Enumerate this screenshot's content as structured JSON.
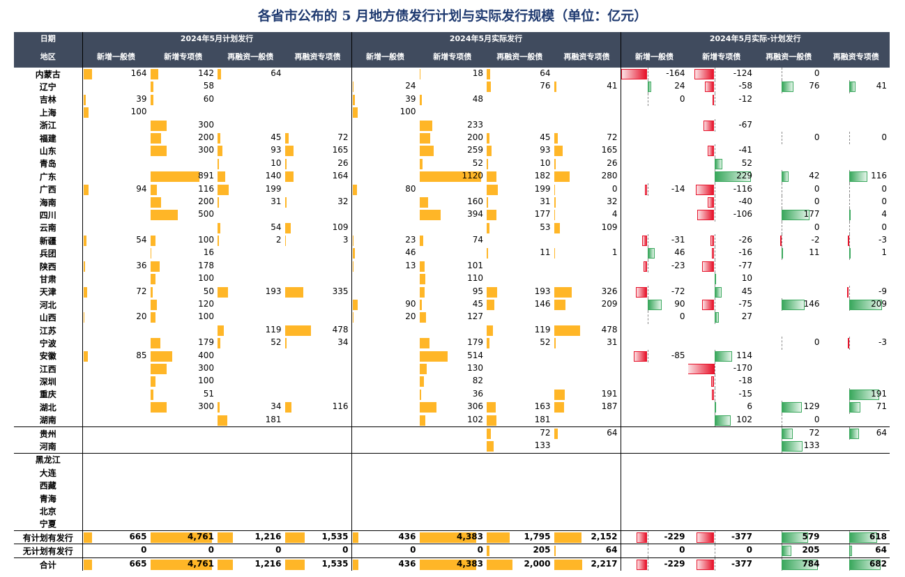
{
  "title": "各省市公布的 5 月地方债发行计划与实际发行规模（单位：亿元）",
  "header": {
    "row1_label": "日期",
    "row2_label": "地区",
    "groups": [
      "2024年5月计划发行",
      "2024年5月实际发行",
      "2024年5月实际-计划发行"
    ],
    "cols": [
      "新增一般债",
      "新增专项债",
      "再融资一般债",
      "再融资专项债"
    ]
  },
  "colors": {
    "header_bg": "#404b5e",
    "bar": "#ffb627",
    "pos_bar": "#39a75c",
    "neg_bar": "#e6122a",
    "title": "#1f3a70"
  },
  "rows": [
    {
      "name": "内蒙古",
      "p": [
        164,
        142,
        64,
        null
      ],
      "a": [
        null,
        18,
        64,
        null
      ],
      "d": [
        -164,
        -124,
        0,
        null
      ]
    },
    {
      "name": "辽宁",
      "p": [
        null,
        58,
        null,
        null
      ],
      "a": [
        24,
        null,
        76,
        41
      ],
      "d": [
        24,
        -58,
        76,
        41
      ]
    },
    {
      "name": "吉林",
      "p": [
        39,
        60,
        null,
        null
      ],
      "a": [
        39,
        48,
        null,
        null
      ],
      "d": [
        0,
        -12,
        null,
        null
      ]
    },
    {
      "name": "上海",
      "p": [
        100,
        null,
        null,
        null
      ],
      "a": [
        100,
        null,
        null,
        null
      ],
      "d": [
        null,
        null,
        null,
        null
      ]
    },
    {
      "name": "浙江",
      "p": [
        null,
        300,
        null,
        null
      ],
      "a": [
        null,
        233,
        null,
        null
      ],
      "d": [
        null,
        -67,
        null,
        null
      ]
    },
    {
      "name": "福建",
      "p": [
        null,
        200,
        45,
        72
      ],
      "a": [
        null,
        200,
        45,
        72
      ],
      "d": [
        null,
        null,
        0,
        0
      ]
    },
    {
      "name": "山东",
      "p": [
        null,
        300,
        93,
        165
      ],
      "a": [
        null,
        259,
        93,
        165
      ],
      "d": [
        null,
        -41,
        null,
        null
      ]
    },
    {
      "name": "青岛",
      "p": [
        null,
        null,
        10,
        26
      ],
      "a": [
        null,
        52,
        10,
        26
      ],
      "d": [
        null,
        52,
        null,
        null
      ]
    },
    {
      "name": "广东",
      "p": [
        null,
        891,
        140,
        164
      ],
      "a": [
        null,
        1120,
        182,
        280
      ],
      "d": [
        null,
        229,
        42,
        116
      ]
    },
    {
      "name": "广西",
      "p": [
        94,
        116,
        199,
        null
      ],
      "a": [
        80,
        null,
        199,
        0
      ],
      "d": [
        -14,
        -116,
        0,
        0
      ]
    },
    {
      "name": "海南",
      "p": [
        null,
        200,
        31,
        32
      ],
      "a": [
        null,
        160,
        31,
        32
      ],
      "d": [
        null,
        -40,
        0,
        0
      ]
    },
    {
      "name": "四川",
      "p": [
        null,
        500,
        null,
        null
      ],
      "a": [
        null,
        394,
        177,
        4
      ],
      "d": [
        null,
        -106,
        177,
        4
      ]
    },
    {
      "name": "云南",
      "p": [
        null,
        null,
        54,
        109
      ],
      "a": [
        null,
        null,
        53,
        109
      ],
      "d": [
        null,
        null,
        0,
        0
      ]
    },
    {
      "name": "新疆",
      "p": [
        54,
        100,
        2,
        3
      ],
      "a": [
        23,
        74,
        null,
        null
      ],
      "d": [
        -31,
        -26,
        -2,
        -3
      ]
    },
    {
      "name": "兵团",
      "p": [
        null,
        16,
        null,
        null
      ],
      "a": [
        46,
        null,
        11,
        1
      ],
      "d": [
        46,
        -16,
        11,
        1
      ]
    },
    {
      "name": "陕西",
      "p": [
        36,
        178,
        null,
        null
      ],
      "a": [
        13,
        101,
        null,
        null
      ],
      "d": [
        -23,
        -77,
        null,
        null
      ]
    },
    {
      "name": "甘肃",
      "p": [
        null,
        100,
        null,
        null
      ],
      "a": [
        null,
        110,
        null,
        null
      ],
      "d": [
        null,
        10,
        null,
        null
      ]
    },
    {
      "name": "天津",
      "p": [
        72,
        50,
        193,
        335
      ],
      "a": [
        null,
        95,
        193,
        326
      ],
      "d": [
        -72,
        45,
        null,
        -9
      ]
    },
    {
      "name": "河北",
      "p": [
        null,
        120,
        null,
        null
      ],
      "a": [
        90,
        45,
        146,
        209
      ],
      "d": [
        90,
        -75,
        146,
        209
      ]
    },
    {
      "name": "山西",
      "p": [
        20,
        100,
        null,
        null
      ],
      "a": [
        20,
        127,
        null,
        null
      ],
      "d": [
        0,
        27,
        null,
        null
      ]
    },
    {
      "name": "江苏",
      "p": [
        null,
        null,
        119,
        478
      ],
      "a": [
        null,
        null,
        119,
        478
      ],
      "d": [
        null,
        null,
        null,
        null
      ]
    },
    {
      "name": "宁波",
      "p": [
        null,
        179,
        52,
        34
      ],
      "a": [
        null,
        179,
        52,
        31
      ],
      "d": [
        null,
        null,
        0,
        -3
      ]
    },
    {
      "name": "安徽",
      "p": [
        85,
        400,
        null,
        null
      ],
      "a": [
        null,
        514,
        null,
        null
      ],
      "d": [
        -85,
        114,
        null,
        null
      ]
    },
    {
      "name": "江西",
      "p": [
        null,
        300,
        null,
        null
      ],
      "a": [
        null,
        130,
        null,
        null
      ],
      "d": [
        null,
        -170,
        null,
        null
      ]
    },
    {
      "name": "深圳",
      "p": [
        null,
        100,
        null,
        null
      ],
      "a": [
        null,
        82,
        null,
        null
      ],
      "d": [
        null,
        -18,
        null,
        null
      ]
    },
    {
      "name": "重庆",
      "p": [
        null,
        51,
        null,
        null
      ],
      "a": [
        null,
        36,
        null,
        191
      ],
      "d": [
        null,
        -15,
        null,
        191
      ]
    },
    {
      "name": "湖北",
      "p": [
        null,
        300,
        34,
        116
      ],
      "a": [
        null,
        306,
        163,
        187
      ],
      "d": [
        null,
        6,
        129,
        71
      ]
    },
    {
      "name": "湖南",
      "p": [
        null,
        null,
        181,
        null
      ],
      "a": [
        null,
        102,
        181,
        null
      ],
      "d": [
        null,
        102,
        0,
        null
      ]
    },
    {
      "name": "贵州",
      "p": [
        null,
        null,
        null,
        null
      ],
      "a": [
        null,
        null,
        72,
        64
      ],
      "d": [
        null,
        null,
        72,
        64
      ]
    },
    {
      "name": "河南",
      "p": [
        null,
        null,
        null,
        null
      ],
      "a": [
        null,
        null,
        133,
        null
      ],
      "d": [
        null,
        null,
        133,
        null
      ]
    },
    {
      "name": "黑龙江",
      "p": [
        null,
        null,
        null,
        null
      ],
      "a": [
        null,
        null,
        null,
        null
      ],
      "d": [
        null,
        null,
        null,
        null
      ]
    },
    {
      "name": "大连",
      "p": [
        null,
        null,
        null,
        null
      ],
      "a": [
        null,
        null,
        null,
        null
      ],
      "d": [
        null,
        null,
        null,
        null
      ]
    },
    {
      "name": "西藏",
      "p": [
        null,
        null,
        null,
        null
      ],
      "a": [
        null,
        null,
        null,
        null
      ],
      "d": [
        null,
        null,
        null,
        null
      ]
    },
    {
      "name": "青海",
      "p": [
        null,
        null,
        null,
        null
      ],
      "a": [
        null,
        null,
        null,
        null
      ],
      "d": [
        null,
        null,
        null,
        null
      ]
    },
    {
      "name": "北京",
      "p": [
        null,
        null,
        null,
        null
      ],
      "a": [
        null,
        null,
        null,
        null
      ],
      "d": [
        null,
        null,
        null,
        null
      ]
    },
    {
      "name": "宁夏",
      "p": [
        null,
        null,
        null,
        null
      ],
      "a": [
        null,
        null,
        null,
        null
      ],
      "d": [
        null,
        null,
        null,
        null
      ]
    }
  ],
  "summary": [
    {
      "name": "有计划有发行",
      "p": [
        "665",
        "4,761",
        "1,216",
        "1,535"
      ],
      "a": [
        "436",
        "4,383",
        "1,795",
        "2,152"
      ],
      "d": [
        "-229",
        "-377",
        "579",
        "618"
      ]
    },
    {
      "name": "无计划有发行",
      "p": [
        "0",
        "0",
        "0",
        "0"
      ],
      "a": [
        "0",
        "0",
        "205",
        "64"
      ],
      "d": [
        "0",
        "0",
        "205",
        "64"
      ]
    },
    {
      "name": "合计",
      "p": [
        "665",
        "4,761",
        "1,216",
        "1,535"
      ],
      "a": [
        "436",
        "4,383",
        "2,000",
        "2,217"
      ],
      "d": [
        "-229",
        "-377",
        "784",
        "682"
      ]
    }
  ]
}
